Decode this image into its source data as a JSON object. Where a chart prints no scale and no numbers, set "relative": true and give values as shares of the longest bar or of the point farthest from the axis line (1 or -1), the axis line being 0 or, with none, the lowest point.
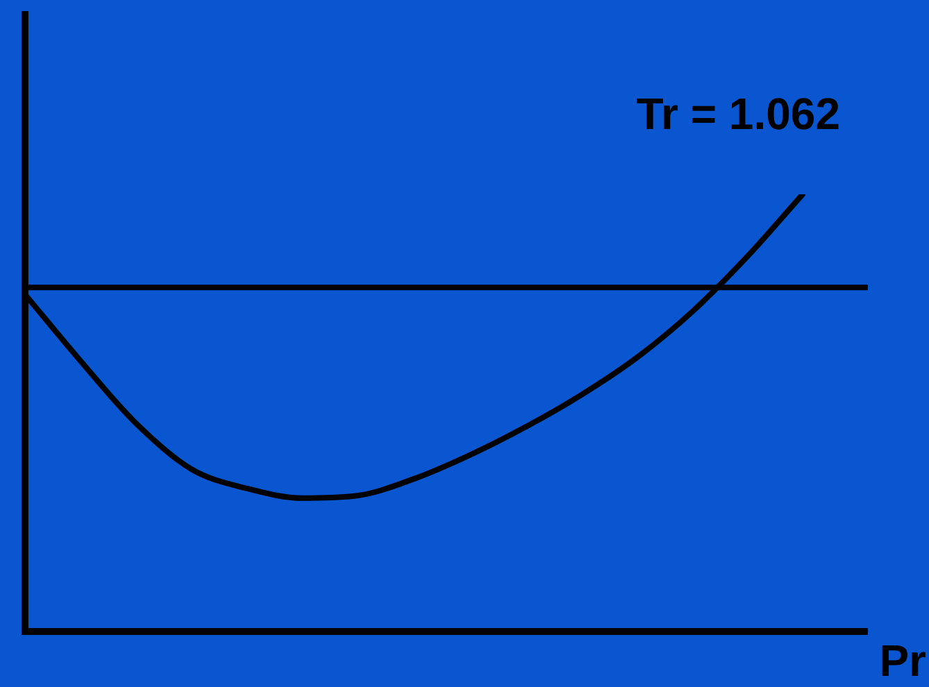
{
  "chart_data": {
    "type": "line",
    "relative": true,
    "xlabel": "Pr",
    "annotations": [
      "Tr = 1.062"
    ],
    "categories": [
      null,
      null,
      null,
      null,
      null,
      null,
      null,
      null,
      null,
      null,
      null,
      null,
      null,
      null,
      null,
      null
    ],
    "series": [
      {
        "color": "#000000",
        "values": [
          0.771,
          0.619,
          0.476,
          0.371,
          0.327,
          0.305,
          0.311,
          0.349,
          0.403,
          0.467,
          0.54,
          0.625,
          0.73,
          0.857,
          1,
          null
        ]
      }
    ],
    "ref_lines": [
      {
        "axis": "y",
        "value": 0.787,
        "color": "#000000"
      }
    ],
    "legend": false,
    "marker": "none",
    "line_style": "solid"
  }
}
